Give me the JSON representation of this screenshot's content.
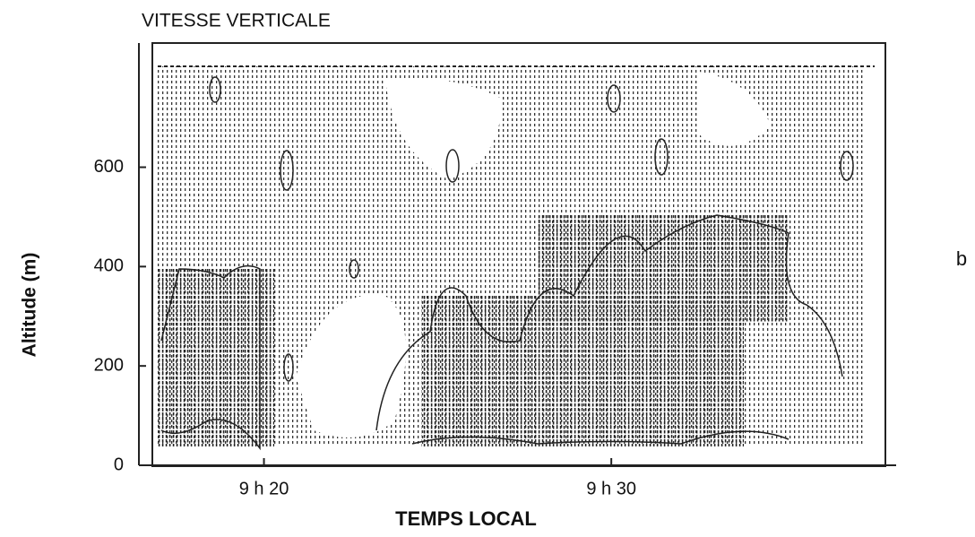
{
  "chart_data": {
    "type": "contour",
    "title": "VITESSE VERTICALE",
    "y_label": "Altitude (m)",
    "x_label": "TEMPS LOCAL",
    "panel_label": "b",
    "ylim": [
      0,
      850
    ],
    "yticks": [
      0,
      200,
      400,
      600
    ],
    "xlim": [
      16.4,
      38.2
    ],
    "xticks": [
      {
        "value": 20,
        "label": "9 h 20"
      },
      {
        "value": 30,
        "label": "9 h 30"
      }
    ]
  }
}
